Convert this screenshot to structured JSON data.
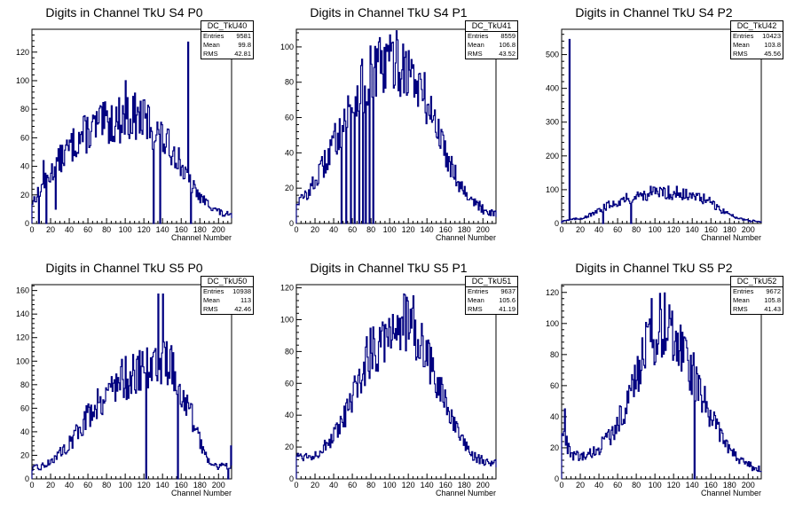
{
  "chart_data": [
    {
      "type": "histogram",
      "id": "DC_TkU40",
      "title": "Digits in Channel TkU S4 P0",
      "xlabel": "Channel Number",
      "ylabel": "",
      "xlim": [
        0,
        214
      ],
      "ylim": [
        0,
        136
      ],
      "xticks": [
        0,
        20,
        40,
        60,
        80,
        100,
        120,
        140,
        160,
        180,
        200
      ],
      "yticks": [
        0,
        20,
        40,
        60,
        80,
        100,
        120
      ],
      "stats": {
        "entries": "9581",
        "mean": "99.8",
        "rms": "42.81"
      },
      "profile": [
        [
          0,
          15
        ],
        [
          10,
          25
        ],
        [
          30,
          45
        ],
        [
          50,
          60
        ],
        [
          70,
          68
        ],
        [
          90,
          72
        ],
        [
          110,
          75
        ],
        [
          125,
          70
        ],
        [
          140,
          58
        ],
        [
          155,
          48
        ],
        [
          165,
          32
        ],
        [
          180,
          18
        ],
        [
          200,
          8
        ],
        [
          214,
          4
        ]
      ],
      "spikes": [
        [
          7,
          0
        ],
        [
          12,
          44
        ],
        [
          15,
          0
        ],
        [
          25,
          10
        ],
        [
          100,
          100
        ],
        [
          130,
          0
        ],
        [
          137,
          0
        ],
        [
          167,
          127
        ],
        [
          170,
          0
        ],
        [
          173,
          30
        ]
      ]
    },
    {
      "type": "histogram",
      "id": "DC_TkU41",
      "title": "Digits in Channel TkU S4 P1",
      "xlabel": "Channel Number",
      "ylabel": "",
      "xlim": [
        0,
        214
      ],
      "ylim": [
        0,
        110
      ],
      "xticks": [
        0,
        20,
        40,
        60,
        80,
        100,
        120,
        140,
        160,
        180,
        200
      ],
      "yticks": [
        0,
        20,
        40,
        60,
        80,
        100
      ],
      "stats": {
        "entries": "8559",
        "mean": "106.8",
        "rms": "43.52"
      },
      "profile": [
        [
          0,
          12
        ],
        [
          10,
          16
        ],
        [
          20,
          24
        ],
        [
          30,
          34
        ],
        [
          45,
          52
        ],
        [
          60,
          68
        ],
        [
          75,
          80
        ],
        [
          90,
          88
        ],
        [
          105,
          92
        ],
        [
          118,
          88
        ],
        [
          130,
          78
        ],
        [
          145,
          62
        ],
        [
          160,
          40
        ],
        [
          175,
          22
        ],
        [
          190,
          12
        ],
        [
          200,
          8
        ],
        [
          214,
          6
        ]
      ],
      "spikes": [
        [
          48,
          0
        ],
        [
          53,
          0
        ],
        [
          58,
          0
        ],
        [
          62,
          0
        ],
        [
          67,
          0
        ],
        [
          71,
          0
        ],
        [
          74,
          0
        ],
        [
          78,
          0
        ],
        [
          82,
          0
        ],
        [
          108,
          104
        ]
      ]
    },
    {
      "type": "histogram",
      "id": "DC_TkU42",
      "title": "Digits in Channel TkU S4 P2",
      "xlabel": "Channel Number",
      "ylabel": "",
      "xlim": [
        0,
        214
      ],
      "ylim": [
        0,
        575
      ],
      "xticks": [
        0,
        20,
        40,
        60,
        80,
        100,
        120,
        140,
        160,
        180,
        200
      ],
      "yticks": [
        0,
        100,
        200,
        300,
        400,
        500
      ],
      "stats": {
        "entries": "10423",
        "mean": "103.8",
        "rms": "45.56"
      },
      "profile": [
        [
          0,
          8
        ],
        [
          20,
          15
        ],
        [
          35,
          30
        ],
        [
          50,
          55
        ],
        [
          65,
          70
        ],
        [
          80,
          80
        ],
        [
          95,
          90
        ],
        [
          110,
          92
        ],
        [
          125,
          88
        ],
        [
          140,
          80
        ],
        [
          155,
          70
        ],
        [
          170,
          40
        ],
        [
          185,
          20
        ],
        [
          200,
          8
        ],
        [
          214,
          5
        ]
      ],
      "spikes": [
        [
          8,
          545
        ],
        [
          44,
          0
        ],
        [
          74,
          0
        ],
        [
          123,
          110
        ]
      ]
    },
    {
      "type": "histogram",
      "id": "DC_TkU50",
      "title": "Digits in Channel TkU S5 P0",
      "xlabel": "Channel Number",
      "ylabel": "",
      "xlim": [
        0,
        214
      ],
      "ylim": [
        0,
        165
      ],
      "xticks": [
        0,
        20,
        40,
        60,
        80,
        100,
        120,
        140,
        160,
        180,
        200
      ],
      "yticks": [
        0,
        20,
        40,
        60,
        80,
        100,
        120,
        140,
        160
      ],
      "stats": {
        "entries": "10938",
        "mean": "113",
        "rms": "42.46"
      },
      "profile": [
        [
          0,
          8
        ],
        [
          15,
          12
        ],
        [
          30,
          22
        ],
        [
          45,
          35
        ],
        [
          60,
          55
        ],
        [
          75,
          70
        ],
        [
          90,
          82
        ],
        [
          105,
          88
        ],
        [
          118,
          90
        ],
        [
          130,
          98
        ],
        [
          140,
          105
        ],
        [
          150,
          95
        ],
        [
          160,
          70
        ],
        [
          170,
          55
        ],
        [
          180,
          30
        ],
        [
          190,
          15
        ],
        [
          200,
          10
        ],
        [
          214,
          12
        ]
      ],
      "spikes": [
        [
          122,
          0
        ],
        [
          135,
          157
        ],
        [
          140,
          157
        ],
        [
          156,
          0
        ],
        [
          210,
          0
        ],
        [
          213,
          28
        ]
      ]
    },
    {
      "type": "histogram",
      "id": "DC_TkU51",
      "title": "Digits in Channel TkU S5 P1",
      "xlabel": "Channel Number",
      "ylabel": "",
      "xlim": [
        0,
        214
      ],
      "ylim": [
        0,
        122
      ],
      "xticks": [
        0,
        20,
        40,
        60,
        80,
        100,
        120,
        140,
        160,
        180,
        200
      ],
      "yticks": [
        0,
        20,
        40,
        60,
        80,
        100,
        120
      ],
      "stats": {
        "entries": "9637",
        "mean": "105.6",
        "rms": "41.19"
      },
      "profile": [
        [
          0,
          15
        ],
        [
          15,
          14
        ],
        [
          30,
          20
        ],
        [
          45,
          30
        ],
        [
          60,
          50
        ],
        [
          75,
          75
        ],
        [
          90,
          90
        ],
        [
          105,
          98
        ],
        [
          118,
          98
        ],
        [
          130,
          88
        ],
        [
          145,
          70
        ],
        [
          160,
          45
        ],
        [
          175,
          25
        ],
        [
          190,
          14
        ],
        [
          205,
          10
        ],
        [
          214,
          10
        ]
      ],
      "spikes": [
        [
          125,
          115
        ]
      ]
    },
    {
      "type": "histogram",
      "id": "DC_TkU52",
      "title": "Digits in Channel TkU S5 P2",
      "xlabel": "Channel Number",
      "ylabel": "",
      "xlim": [
        0,
        214
      ],
      "ylim": [
        0,
        125
      ],
      "xticks": [
        0,
        20,
        40,
        60,
        80,
        100,
        120,
        140,
        160,
        180,
        200
      ],
      "yticks": [
        0,
        20,
        40,
        60,
        80,
        100,
        120
      ],
      "stats": {
        "entries": "9672",
        "mean": "105.8",
        "rms": "41.43"
      },
      "profile": [
        [
          0,
          30
        ],
        [
          10,
          15
        ],
        [
          25,
          14
        ],
        [
          40,
          20
        ],
        [
          55,
          30
        ],
        [
          70,
          50
        ],
        [
          85,
          75
        ],
        [
          95,
          92
        ],
        [
          108,
          100
        ],
        [
          120,
          95
        ],
        [
          132,
          82
        ],
        [
          145,
          60
        ],
        [
          160,
          40
        ],
        [
          175,
          22
        ],
        [
          190,
          12
        ],
        [
          205,
          8
        ],
        [
          214,
          4
        ]
      ],
      "spikes": [
        [
          3,
          45
        ],
        [
          96,
          116
        ],
        [
          142,
          0
        ]
      ]
    }
  ],
  "statbox_labels": {
    "entries": "Entries",
    "mean": "Mean",
    "rms": "RMS"
  },
  "colors": {
    "line": "#000080",
    "axis": "#000000",
    "background": "#ffffff"
  }
}
